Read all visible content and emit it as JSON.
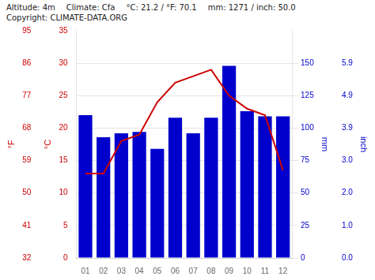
{
  "chart_data": {
    "type": "bar",
    "categories": [
      "01",
      "02",
      "03",
      "04",
      "05",
      "06",
      "07",
      "08",
      "09",
      "10",
      "11",
      "12"
    ],
    "series": [
      {
        "type": "bar",
        "color": "#0000cc",
        "values": [
          110,
          93,
          96,
          97,
          84,
          108,
          96,
          108,
          148,
          113,
          109,
          109
        ],
        "axis": "y2"
      },
      {
        "type": "line",
        "color": "#cc0000",
        "values": [
          13,
          13,
          18,
          19,
          24,
          27,
          28,
          29,
          25,
          23,
          22,
          13.5
        ]
      }
    ],
    "ylabel": "°C",
    "ylim": [
      0,
      35
    ],
    "yticks": [
      0,
      5,
      10,
      15,
      20,
      25,
      30,
      35
    ],
    "y2label": "mm",
    "y2lim": [
      0,
      175
    ],
    "y2ticks": [
      0,
      25,
      50,
      75,
      100,
      125,
      150
    ],
    "y3label": "°F",
    "y3lim": [
      0,
      35
    ],
    "y3ticks": [
      {
        "value": 0,
        "label": "32"
      },
      {
        "value": 5,
        "label": "41"
      },
      {
        "value": 10,
        "label": "50"
      },
      {
        "value": 15,
        "label": "59"
      },
      {
        "value": 20,
        "label": "68"
      },
      {
        "value": 25,
        "label": "77"
      },
      {
        "value": 30,
        "label": "86"
      },
      {
        "value": 35,
        "label": "95"
      }
    ],
    "y4label": "inch",
    "y4lim": [
      0,
      175
    ],
    "y4ticks": [
      {
        "value": 0,
        "label": "0.0"
      },
      {
        "value": 25,
        "label": "1.0"
      },
      {
        "value": 50,
        "label": "2.0"
      },
      {
        "value": 75,
        "label": "3.0"
      },
      {
        "value": 100,
        "label": "3.9"
      },
      {
        "value": 125,
        "label": "4.9"
      },
      {
        "value": 150,
        "label": "5.9"
      }
    ],
    "annotations": [
      "Altitude: 4m",
      "Climate: Cfa",
      "°C: 21.2 / °F: 70.1",
      "mm: 1271 / inch: 50.0",
      "Copyright: CLIMATE-DATA.ORG"
    ],
    "grid": true
  }
}
